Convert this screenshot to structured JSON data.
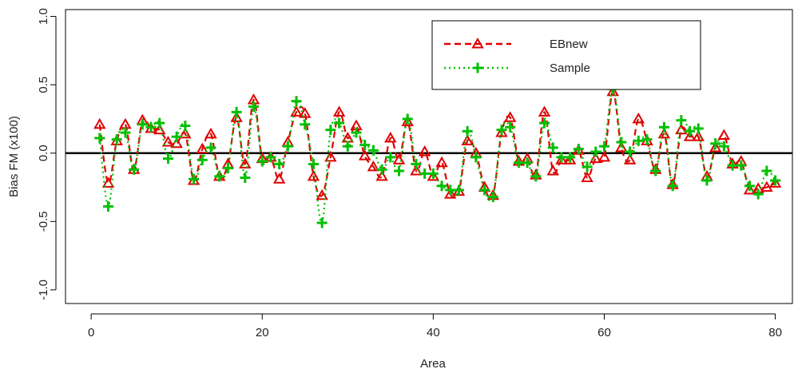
{
  "chart_data": {
    "type": "line",
    "xlabel": "Area",
    "ylabel": "Bias FM (x100)",
    "xlim": [
      -3,
      82
    ],
    "ylim": [
      -1.1,
      1.05
    ],
    "xticks": [
      0,
      20,
      40,
      60,
      80
    ],
    "yticks": [
      -1.0,
      -0.5,
      0.0,
      0.5,
      1.0
    ],
    "x_tick_labels": [
      "0",
      "20",
      "40",
      "60",
      "80"
    ],
    "y_tick_labels": [
      "-1.0",
      "-0.5",
      "0.0",
      "0.5",
      "1.0"
    ],
    "reference_line": 0.0,
    "legend_position": "top-right",
    "x": [
      1,
      2,
      3,
      4,
      5,
      6,
      7,
      8,
      9,
      10,
      11,
      12,
      13,
      14,
      15,
      16,
      17,
      18,
      19,
      20,
      21,
      22,
      23,
      24,
      25,
      26,
      27,
      28,
      29,
      30,
      31,
      32,
      33,
      34,
      35,
      36,
      37,
      38,
      39,
      40,
      41,
      42,
      43,
      44,
      45,
      46,
      47,
      48,
      49,
      50,
      51,
      52,
      53,
      54,
      55,
      56,
      57,
      58,
      59,
      60,
      61,
      62,
      63,
      64,
      65,
      66,
      67,
      68,
      69,
      70,
      71,
      72,
      73,
      74,
      75,
      76,
      77,
      78,
      79,
      80
    ],
    "series": [
      {
        "name": "EBnew",
        "color": "#e00000",
        "line_style": "dashed",
        "marker": "triangle-open",
        "values": [
          0.21,
          -0.22,
          0.09,
          0.21,
          -0.12,
          0.24,
          0.18,
          0.17,
          0.08,
          0.07,
          0.14,
          -0.2,
          0.03,
          0.14,
          -0.17,
          -0.08,
          0.26,
          -0.08,
          0.39,
          -0.04,
          -0.03,
          -0.19,
          0.08,
          0.3,
          0.29,
          -0.17,
          -0.31,
          -0.03,
          0.3,
          0.11,
          0.2,
          -0.02,
          -0.1,
          -0.17,
          0.11,
          -0.05,
          0.23,
          -0.13,
          0.01,
          -0.17,
          -0.07,
          -0.3,
          -0.28,
          0.09,
          0.0,
          -0.25,
          -0.31,
          0.15,
          0.26,
          -0.06,
          -0.04,
          -0.16,
          0.3,
          -0.13,
          -0.05,
          -0.05,
          0.02,
          -0.18,
          -0.04,
          -0.03,
          0.45,
          0.04,
          -0.05,
          0.25,
          0.09,
          -0.12,
          0.14,
          -0.23,
          0.17,
          0.12,
          0.12,
          -0.17,
          0.04,
          0.13,
          -0.08,
          -0.06,
          -0.27,
          -0.26,
          -0.25,
          -0.22
        ]
      },
      {
        "name": "Sample",
        "color": "#00c000",
        "line_style": "dotted",
        "marker": "plus",
        "values": [
          0.11,
          -0.39,
          0.1,
          0.15,
          -0.12,
          0.21,
          0.19,
          0.22,
          -0.04,
          0.12,
          0.2,
          -0.19,
          -0.05,
          0.04,
          -0.17,
          -0.11,
          0.3,
          -0.18,
          0.34,
          -0.06,
          -0.03,
          -0.08,
          0.05,
          0.38,
          0.21,
          -0.08,
          -0.51,
          0.17,
          0.22,
          0.05,
          0.15,
          0.06,
          0.02,
          -0.12,
          -0.03,
          -0.13,
          0.25,
          -0.08,
          -0.15,
          -0.15,
          -0.24,
          -0.27,
          -0.27,
          0.16,
          -0.03,
          -0.27,
          -0.32,
          0.17,
          0.19,
          -0.07,
          -0.07,
          -0.17,
          0.22,
          0.04,
          -0.03,
          -0.03,
          0.03,
          -0.1,
          0.01,
          0.05,
          0.47,
          0.08,
          0.01,
          0.09,
          0.1,
          -0.13,
          0.19,
          -0.24,
          0.24,
          0.16,
          0.18,
          -0.2,
          0.07,
          0.05,
          -0.09,
          -0.09,
          -0.24,
          -0.3,
          -0.13,
          -0.2
        ]
      }
    ]
  }
}
